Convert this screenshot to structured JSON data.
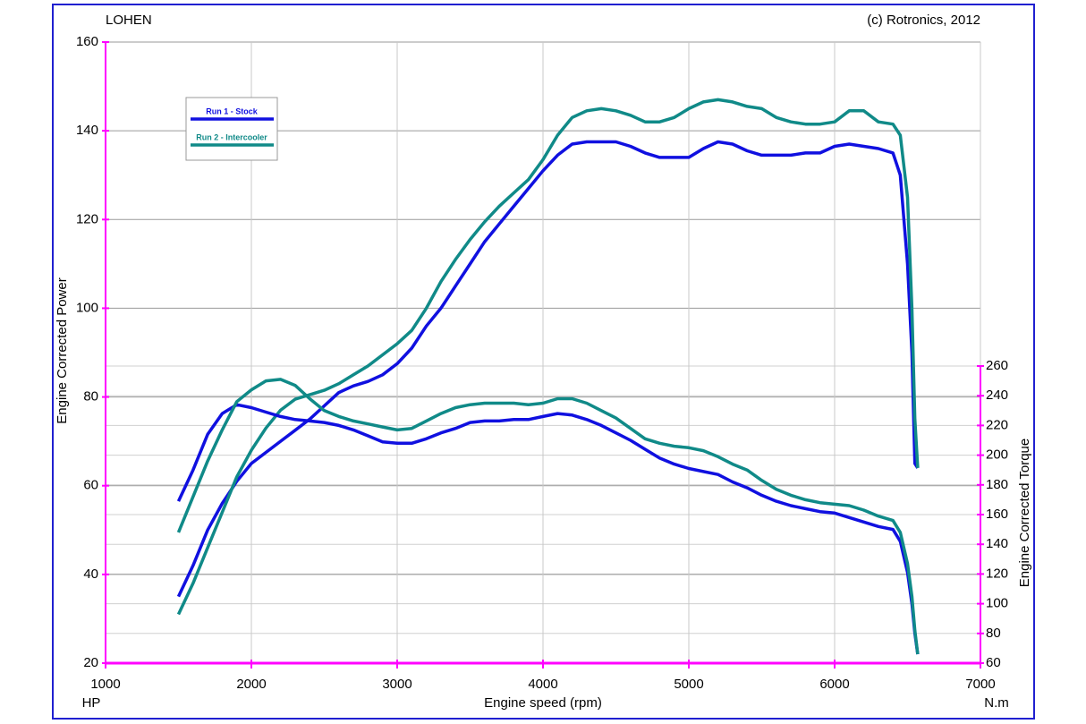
{
  "chart_data": {
    "type": "line",
    "title": "LOHEN",
    "credit": "(c) Rotronics, 2012",
    "x_label": "Engine speed (rpm)",
    "y_label": "Engine Corrected Power",
    "y2_label": "Engine Corrected Torque",
    "y_unit": "HP",
    "y2_unit": "N.m",
    "grid": true,
    "xlim": [
      1000,
      7000
    ],
    "xticks": [
      1000,
      2000,
      3000,
      4000,
      5000,
      6000,
      7000
    ],
    "ylim": [
      20,
      160
    ],
    "yticks": [
      20,
      40,
      60,
      80,
      100,
      120,
      140,
      160
    ],
    "y2lim": [
      60,
      260
    ],
    "y2ticks": [
      60,
      80,
      100,
      120,
      140,
      160,
      180,
      200,
      220,
      240,
      260
    ],
    "x": [
      1500,
      1600,
      1700,
      1800,
      1900,
      2000,
      2100,
      2200,
      2300,
      2400,
      2500,
      2600,
      2700,
      2800,
      2900,
      3000,
      3100,
      3200,
      3300,
      3400,
      3500,
      3600,
      3700,
      3800,
      3900,
      4000,
      4100,
      4200,
      4300,
      4400,
      4500,
      4600,
      4700,
      4800,
      4900,
      5000,
      5100,
      5200,
      5300,
      5400,
      5500,
      5600,
      5700,
      5800,
      5900,
      6000,
      6100,
      6200,
      6300,
      6400,
      6450,
      6500,
      6530,
      6550,
      6570
    ],
    "series": [
      {
        "name": "Run 1 - Stock",
        "color": "#1010e0",
        "values": [
          35,
          42,
          50,
          56,
          61,
          65,
          67.5,
          70,
          72.5,
          75,
          78,
          81,
          82.5,
          83.5,
          85,
          87.5,
          91,
          96,
          100,
          105,
          110,
          115,
          119,
          123,
          127,
          131,
          134.5,
          137,
          137.5,
          137.5,
          137.5,
          136.5,
          135,
          134,
          134,
          134,
          136,
          137.5,
          137,
          135.5,
          134.5,
          134.5,
          134.5,
          135,
          135,
          136.5,
          137,
          136.5,
          136,
          135,
          130,
          110,
          90,
          65,
          64
        ]
      },
      {
        "name": "Run 2 - Intercooler",
        "color": "#108a88",
        "values": [
          31,
          38,
          46,
          54,
          62,
          68,
          73,
          77,
          79.5,
          80.5,
          81.5,
          83,
          85,
          87,
          89.5,
          92,
          95,
          100,
          106,
          111,
          115.5,
          119.5,
          123,
          126,
          129,
          133.5,
          139,
          143,
          144.5,
          145,
          144.5,
          143.5,
          142,
          142,
          143,
          145,
          146.5,
          147,
          146.5,
          145.5,
          145,
          143,
          142,
          141.5,
          141.5,
          142,
          144.5,
          144.5,
          142,
          141.5,
          139,
          125,
          100,
          75,
          64
        ]
      },
      {
        "color": "#1010e0",
        "axis": "y2",
        "values": [
          169,
          190,
          214,
          228,
          234,
          232,
          229,
          226,
          224,
          223,
          222,
          220,
          217,
          213,
          209,
          208,
          208,
          211,
          215,
          218,
          222,
          223,
          223,
          224,
          224,
          226,
          228,
          227,
          224,
          220,
          215,
          210,
          204,
          198,
          194,
          191,
          189,
          187,
          182,
          178,
          173,
          169,
          166,
          164,
          162,
          161,
          158,
          155,
          152,
          150,
          142,
          121,
          100,
          80,
          66
        ]
      },
      {
        "color": "#108a88",
        "axis": "y2",
        "values": [
          148,
          172,
          196,
          217,
          236,
          244,
          250,
          251,
          247,
          238,
          230,
          226,
          223,
          221,
          219,
          217,
          218,
          223,
          228,
          232,
          234,
          235,
          235,
          235,
          234,
          235,
          238,
          238,
          235,
          230,
          225,
          218,
          211,
          208,
          206,
          205,
          203,
          199,
          194,
          190,
          183,
          177,
          173,
          170,
          168,
          167,
          166,
          163,
          159,
          156,
          148,
          127,
          105,
          82,
          66
        ]
      }
    ]
  }
}
